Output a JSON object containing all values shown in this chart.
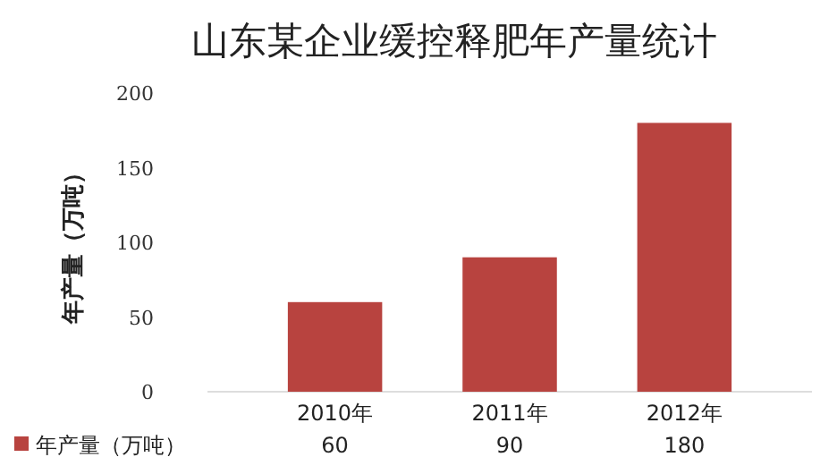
{
  "chart_data": {
    "type": "bar",
    "title": "山东某企业缓控释肥年产量统计",
    "ylabel": "年产量（万吨）",
    "categories": [
      "2010年",
      "2011年",
      "2012年"
    ],
    "series": [
      {
        "name": "年产量（万吨）",
        "color": "#b8433f",
        "values": [
          60,
          90,
          180
        ]
      }
    ],
    "ylim": [
      0,
      200
    ],
    "yticks": [
      0,
      50,
      100,
      150,
      200
    ],
    "grid": false,
    "legend": "bottom left",
    "data_labels": true
  }
}
